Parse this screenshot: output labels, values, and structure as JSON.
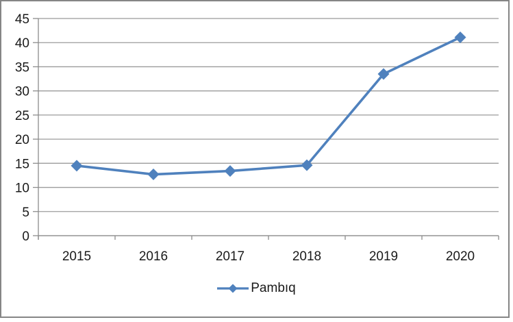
{
  "chart_data": {
    "type": "line",
    "title": "",
    "categories": [
      "2015",
      "2016",
      "2017",
      "2018",
      "2019",
      "2020"
    ],
    "series": [
      {
        "name": "Pambıq",
        "values": [
          14.5,
          12.7,
          13.4,
          14.6,
          33.5,
          41.1
        ],
        "color": "#4f81bd",
        "marker": "diamond"
      }
    ],
    "ylim": [
      0,
      45
    ],
    "yticks": [
      0,
      5,
      10,
      15,
      20,
      25,
      30,
      35,
      40,
      45
    ],
    "grid": "horizontal-only",
    "gridline_color": "#9b9b9b",
    "axis_color": "#8c8c8c",
    "text_color": "#1a1a1a",
    "frame_border_color": "#858585",
    "background": "#ffffff",
    "legend_position": "bottom-center"
  }
}
